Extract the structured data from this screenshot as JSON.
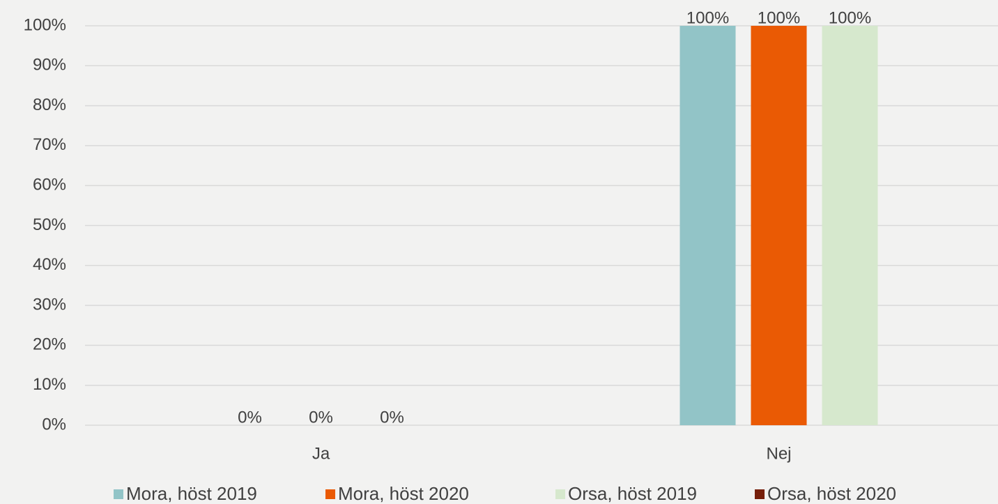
{
  "chart_data": {
    "type": "bar",
    "categories": [
      "Ja",
      "Nej"
    ],
    "series": [
      {
        "name": "Mora, höst 2019",
        "color": "#92c4c7",
        "values": [
          0,
          100
        ],
        "value_labels": [
          "0%",
          "100%"
        ]
      },
      {
        "name": "Mora, höst 2020",
        "color": "#ea5a04",
        "values": [
          0,
          100
        ],
        "value_labels": [
          "0%",
          "100%"
        ]
      },
      {
        "name": "Orsa, höst 2019",
        "color": "#d6e8cd",
        "values": [
          0,
          100
        ],
        "value_labels": [
          "0%",
          "100%"
        ]
      },
      {
        "name": "Orsa, höst 2020",
        "color": "#761f0b",
        "values": [
          null,
          null
        ]
      }
    ],
    "ylim": [
      0,
      100
    ],
    "yticks": [
      {
        "value": 0,
        "label": "0%"
      },
      {
        "value": 10,
        "label": "10%"
      },
      {
        "value": 20,
        "label": "20%"
      },
      {
        "value": 30,
        "label": "30%"
      },
      {
        "value": 40,
        "label": "40%"
      },
      {
        "value": 50,
        "label": "50%"
      },
      {
        "value": 60,
        "label": "60%"
      },
      {
        "value": 70,
        "label": "70%"
      },
      {
        "value": 80,
        "label": "80%"
      },
      {
        "value": 90,
        "label": "90%"
      },
      {
        "value": 100,
        "label": "100%"
      }
    ],
    "grid": true,
    "legend": "bottom"
  }
}
